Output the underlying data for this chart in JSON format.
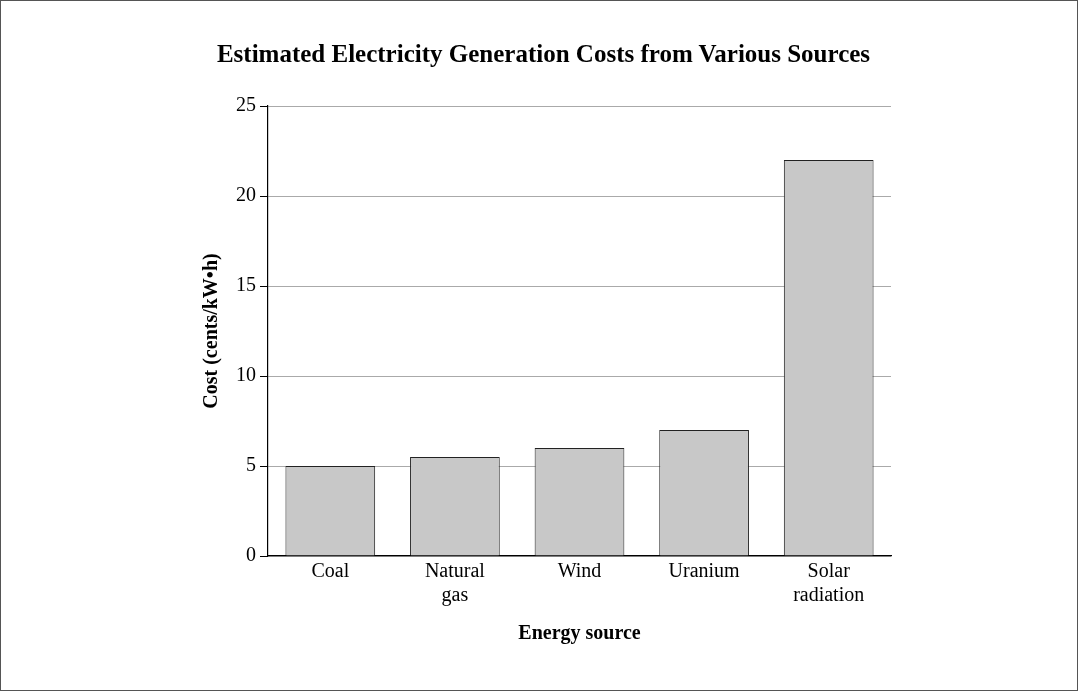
{
  "chart_data": {
    "type": "bar",
    "title": "Estimated Electricity Generation Costs from Various Sources",
    "xlabel": "Energy source",
    "ylabel": "Cost (cents/kW•h)",
    "categories": [
      "Coal",
      "Natural gas",
      "Wind",
      "Uranium",
      "Solar radiation"
    ],
    "values": [
      5,
      5.5,
      6,
      7,
      22
    ],
    "color": "#c8c8c8",
    "ylim": [
      0,
      25
    ],
    "yticks": [
      0,
      5,
      10,
      15,
      20,
      25
    ],
    "grid": "y"
  }
}
